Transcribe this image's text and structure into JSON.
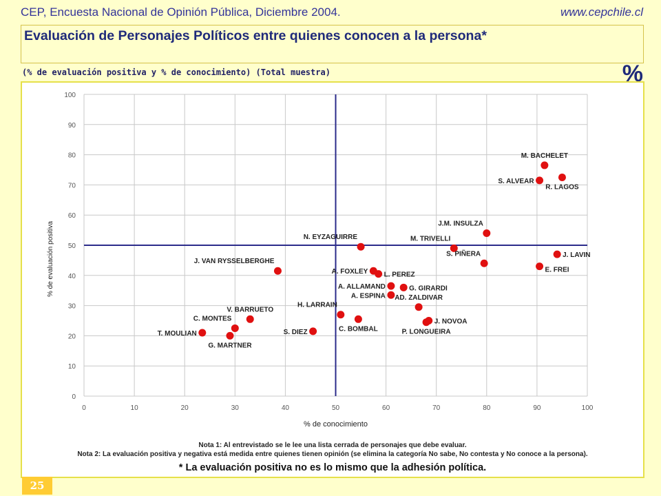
{
  "header": {
    "source": "CEP, Encuesta Nacional de Opinión Pública, Diciembre 2004.",
    "website": "www.cepchile.cl"
  },
  "title": "Evaluación de Personajes Políticos entre quienes conocen a la persona*",
  "subtitle": "(% de evaluación positiva y % de conocimiento) (Total muestra)",
  "unit_symbol": "%",
  "chart_data": {
    "type": "scatter",
    "xlabel": "% de conocimiento",
    "ylabel": "% de evaluación positiva",
    "xlim": [
      0,
      100
    ],
    "ylim": [
      0,
      100
    ],
    "xticks": [
      "0",
      "10",
      "20",
      "30",
      "40",
      "50",
      "60",
      "70",
      "80",
      "90",
      "100"
    ],
    "yticks": [
      "0",
      "10",
      "20",
      "30",
      "40",
      "50",
      "60",
      "70",
      "80",
      "90",
      "100"
    ],
    "grid": true,
    "reference_lines": {
      "x": 50,
      "y": 50
    },
    "point_color": "#e01010",
    "points": [
      {
        "label": "M. BACHELET",
        "x": 91.5,
        "y": 76.5,
        "anchor": "above"
      },
      {
        "label": "S. ALVEAR",
        "x": 90.5,
        "y": 71.5,
        "anchor": "left"
      },
      {
        "label": "R. LAGOS",
        "x": 95,
        "y": 72.5,
        "anchor": "below"
      },
      {
        "label": "J.M. INSULZA",
        "x": 80,
        "y": 54,
        "anchor": "above-left"
      },
      {
        "label": "N. EYZAGUIRRE",
        "x": 55,
        "y": 49.5,
        "anchor": "above-left"
      },
      {
        "label": "M. TRIVELLI",
        "x": 73.5,
        "y": 49,
        "anchor": "above-left"
      },
      {
        "label": "S. PIÑERA",
        "x": 79.5,
        "y": 44,
        "anchor": "above-left"
      },
      {
        "label": "J. LAVIN",
        "x": 94,
        "y": 47,
        "anchor": "right"
      },
      {
        "label": "E. FREI",
        "x": 90.5,
        "y": 43,
        "anchor": "right-below"
      },
      {
        "label": "J. VAN RYSSELBERGHE",
        "x": 38.5,
        "y": 41.5,
        "anchor": "above-left"
      },
      {
        "label": "A. FOXLEY",
        "x": 57.5,
        "y": 41.5,
        "anchor": "left"
      },
      {
        "label": "L. PEREZ",
        "x": 58.5,
        "y": 40.5,
        "anchor": "right"
      },
      {
        "label": "A. ALLAMAND",
        "x": 61,
        "y": 36.5,
        "anchor": "left"
      },
      {
        "label": "G. GIRARDI",
        "x": 63.5,
        "y": 36,
        "anchor": "right"
      },
      {
        "label": "A. ESPINA",
        "x": 61,
        "y": 33.5,
        "anchor": "left"
      },
      {
        "label": "AD. ZALDIVAR",
        "x": 66.5,
        "y": 29.5,
        "anchor": "above"
      },
      {
        "label": "H. LARRAIN",
        "x": 51,
        "y": 27,
        "anchor": "above-left"
      },
      {
        "label": "C. BOMBAL",
        "x": 54.5,
        "y": 25.5,
        "anchor": "below"
      },
      {
        "label": "J. NOVOA",
        "x": 68.5,
        "y": 25,
        "anchor": "right"
      },
      {
        "label": "P. LONGUEIRA",
        "x": 68,
        "y": 24.5,
        "anchor": "below"
      },
      {
        "label": "V. BARRUETO",
        "x": 33,
        "y": 25.5,
        "anchor": "above"
      },
      {
        "label": "C. MONTES",
        "x": 30,
        "y": 22.5,
        "anchor": "above-left"
      },
      {
        "label": "S. DIEZ",
        "x": 45.5,
        "y": 21.5,
        "anchor": "left"
      },
      {
        "label": "T. MOULIAN",
        "x": 23.5,
        "y": 21,
        "anchor": "left"
      },
      {
        "label": "G. MARTNER",
        "x": 29,
        "y": 20,
        "anchor": "below"
      }
    ]
  },
  "notes": {
    "note1": "Nota 1: Al entrevistado se le lee una lista cerrada de personajes que debe evaluar.",
    "note2": "Nota 2: La evaluación positiva y negativa está medida entre quienes tienen opinión (se elimina la categoría No sabe, No contesta y No conoce a la persona).",
    "footnote": "* La evaluación positiva no es lo mismo que la adhesión política."
  },
  "page_number": "25"
}
